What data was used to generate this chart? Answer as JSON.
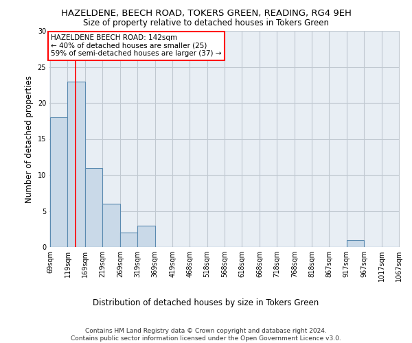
{
  "title": "HAZELDENE, BEECH ROAD, TOKERS GREEN, READING, RG4 9EH",
  "subtitle": "Size of property relative to detached houses in Tokers Green",
  "xlabel": "Distribution of detached houses by size in Tokers Green",
  "ylabel": "Number of detached properties",
  "bar_left_edges": [
    69,
    119,
    169,
    219,
    269,
    319,
    369,
    419,
    468,
    518,
    568,
    618,
    668,
    718,
    768,
    818,
    867,
    917,
    967,
    1017
  ],
  "bar_heights": [
    18,
    23,
    11,
    6,
    2,
    3,
    0,
    0,
    0,
    0,
    0,
    0,
    0,
    0,
    0,
    0,
    0,
    1,
    0,
    0
  ],
  "bin_width": 50,
  "bar_color": "#c9d9e8",
  "bar_edge_color": "#5a8ab0",
  "ylim": [
    0,
    30
  ],
  "yticks": [
    0,
    5,
    10,
    15,
    20,
    25,
    30
  ],
  "x_tick_labels": [
    "69sqm",
    "119sqm",
    "169sqm",
    "219sqm",
    "269sqm",
    "319sqm",
    "369sqm",
    "419sqm",
    "468sqm",
    "518sqm",
    "568sqm",
    "618sqm",
    "668sqm",
    "718sqm",
    "768sqm",
    "818sqm",
    "867sqm",
    "917sqm",
    "967sqm",
    "1017sqm",
    "1067sqm"
  ],
  "red_line_x": 142,
  "annotation_title": "HAZELDENE BEECH ROAD: 142sqm",
  "annotation_line1": "← 40% of detached houses are smaller (25)",
  "annotation_line2": "59% of semi-detached houses are larger (37) →",
  "annotation_box_color": "white",
  "annotation_box_edge_color": "red",
  "footer_line1": "Contains HM Land Registry data © Crown copyright and database right 2024.",
  "footer_line2": "Contains public sector information licensed under the Open Government Licence v3.0.",
  "background_color": "#e8eef4",
  "grid_color": "#c0c8d0"
}
